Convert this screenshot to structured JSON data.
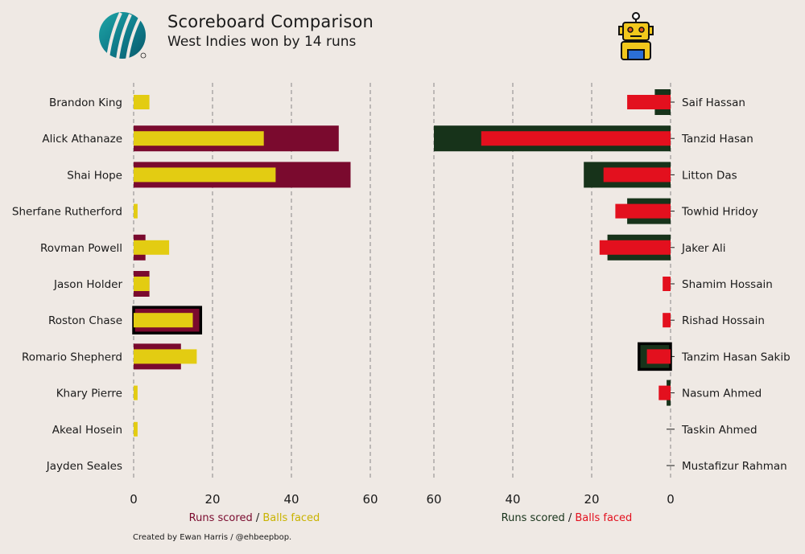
{
  "header": {
    "title": "Scoreboard Comparison",
    "subtitle": "West Indies won by 14 runs"
  },
  "credit": "Created by Ewan Harris / @ehbeepbop.",
  "colors": {
    "background": "#efe9e4",
    "wi_runs": "#7a0a2e",
    "wi_balls": "#e3cc12",
    "ban_runs": "#17331a",
    "ban_balls": "#e3101e",
    "grid": "#888888",
    "text": "#1a1a1a"
  },
  "icons": {
    "left_logo": "icc-logo-icon",
    "right_logo": "robot-icon"
  },
  "chart_data": [
    {
      "type": "bar",
      "orientation": "horizontal",
      "team": "West Indies",
      "xlim": [
        0,
        60
      ],
      "xticks": [
        "0",
        "20",
        "40",
        "60"
      ],
      "xlabel_runs": "Runs scored",
      "xlabel_sep": " / ",
      "xlabel_balls": "Balls faced",
      "highlighted": "Roston Chase",
      "categories": [
        "Brandon King",
        "Alick Athanaze",
        "Shai Hope",
        "Sherfane Rutherford",
        "Rovman Powell",
        "Jason Holder",
        "Roston Chase",
        "Romario Shepherd",
        "Khary Pierre",
        "Akeal Hosein",
        "Jayden Seales"
      ],
      "series": [
        {
          "name": "Runs scored",
          "values": [
            0,
            52,
            55,
            0,
            3,
            4,
            17,
            12,
            0,
            0,
            0
          ]
        },
        {
          "name": "Balls faced",
          "values": [
            4,
            33,
            36,
            1,
            9,
            4,
            15,
            16,
            1,
            1,
            0
          ]
        }
      ]
    },
    {
      "type": "bar",
      "orientation": "horizontal",
      "team": "Bangladesh",
      "xlim": [
        60,
        0
      ],
      "xticks": [
        "60",
        "40",
        "20",
        "0"
      ],
      "xlabel_runs": "Runs scored",
      "xlabel_sep": " / ",
      "xlabel_balls": "Balls faced",
      "highlighted": "Tanzim Hasan Sakib",
      "categories": [
        "Saif Hassan",
        "Tanzid Hasan",
        "Litton Das",
        "Towhid Hridoy",
        "Jaker Ali",
        "Shamim Hossain",
        "Rishad Hossain",
        "Tanzim Hasan Sakib",
        "Nasum Ahmed",
        "Taskin Ahmed",
        "Mustafizur Rahman"
      ],
      "series": [
        {
          "name": "Runs scored",
          "values": [
            4,
            60,
            22,
            11,
            16,
            0,
            0,
            8,
            1,
            0,
            0
          ]
        },
        {
          "name": "Balls faced",
          "values": [
            11,
            48,
            17,
            14,
            18,
            2,
            2,
            6,
            3,
            0,
            0
          ]
        }
      ]
    }
  ]
}
